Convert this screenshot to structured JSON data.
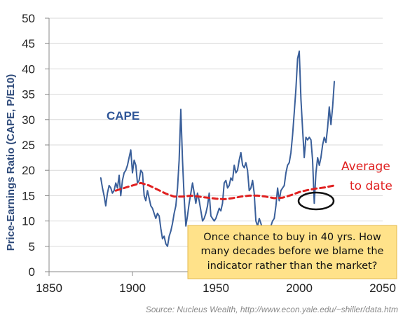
{
  "chart_data": {
    "type": "line",
    "ylabel": "Price-Earnings Ratio (CAPE, P/E10)",
    "xlabel": "",
    "xlim": [
      1850,
      2050
    ],
    "ylim": [
      0,
      50
    ],
    "x_ticks": [
      "1850",
      "1900",
      "1950",
      "2000",
      "2050"
    ],
    "y_ticks": [
      "0",
      "5",
      "10",
      "15",
      "20",
      "25",
      "30",
      "35",
      "40",
      "45",
      "50"
    ],
    "grid": "horizontal",
    "series": [
      {
        "name": "CAPE",
        "color": "#3A5F9A",
        "x": [
          1881,
          1882,
          1883,
          1884,
          1885,
          1886,
          1887,
          1888,
          1889,
          1890,
          1891,
          1892,
          1893,
          1894,
          1895,
          1896,
          1897,
          1898,
          1899,
          1900,
          1901,
          1902,
          1903,
          1904,
          1905,
          1906,
          1907,
          1908,
          1909,
          1910,
          1911,
          1912,
          1913,
          1914,
          1915,
          1916,
          1917,
          1918,
          1919,
          1920,
          1921,
          1922,
          1923,
          1924,
          1925,
          1926,
          1927,
          1928,
          1929,
          1930,
          1931,
          1932,
          1933,
          1934,
          1935,
          1936,
          1937,
          1938,
          1939,
          1940,
          1941,
          1942,
          1943,
          1944,
          1945,
          1946,
          1947,
          1948,
          1949,
          1950,
          1951,
          1952,
          1953,
          1954,
          1955,
          1956,
          1957,
          1958,
          1959,
          1960,
          1961,
          1962,
          1963,
          1964,
          1965,
          1966,
          1967,
          1968,
          1969,
          1970,
          1971,
          1972,
          1973,
          1974,
          1975,
          1976,
          1977,
          1978,
          1979,
          1980,
          1981,
          1982,
          1983,
          1984,
          1985,
          1986,
          1987,
          1988,
          1989,
          1990,
          1991,
          1992,
          1993,
          1994,
          1995,
          1996,
          1997,
          1998,
          1999,
          2000,
          2001,
          2002,
          2003,
          2004,
          2005,
          2006,
          2007,
          2008,
          2009,
          2010,
          2011,
          2012,
          2013,
          2014,
          2015,
          2016,
          2017,
          2018,
          2019,
          2020,
          2021
        ],
        "y": [
          18.5,
          16.5,
          15.0,
          13.0,
          15.5,
          17.0,
          16.5,
          15.5,
          16.0,
          17.5,
          16.5,
          19.0,
          15.0,
          18.0,
          19.5,
          20.0,
          21.0,
          22.5,
          24.0,
          19.5,
          22.0,
          21.0,
          17.5,
          18.0,
          20.0,
          19.5,
          15.0,
          14.0,
          16.0,
          14.5,
          13.0,
          12.5,
          11.5,
          10.5,
          11.5,
          11.0,
          8.5,
          6.5,
          7.0,
          5.5,
          5.0,
          7.0,
          8.0,
          9.5,
          11.5,
          13.0,
          16.5,
          22.0,
          32.0,
          22.0,
          14.5,
          9.0,
          11.0,
          13.5,
          15.5,
          17.5,
          15.5,
          13.5,
          15.5,
          14.0,
          12.0,
          10.0,
          10.5,
          11.5,
          13.0,
          15.5,
          11.0,
          10.5,
          10.0,
          10.5,
          11.5,
          12.5,
          12.0,
          13.5,
          17.5,
          18.0,
          16.5,
          17.0,
          18.5,
          18.0,
          21.0,
          19.5,
          20.0,
          22.0,
          23.5,
          21.0,
          20.5,
          21.5,
          20.0,
          16.0,
          16.5,
          18.0,
          15.5,
          10.0,
          9.0,
          10.5,
          9.5,
          8.5,
          8.5,
          8.5,
          9.0,
          7.5,
          9.0,
          10.0,
          10.5,
          13.0,
          16.5,
          14.0,
          16.0,
          16.5,
          17.0,
          19.5,
          21.0,
          21.5,
          23.5,
          27.0,
          31.5,
          36.0,
          42.0,
          43.5,
          34.0,
          28.0,
          22.5,
          26.5,
          26.0,
          26.5,
          26.0,
          22.0,
          13.5,
          19.5,
          22.5,
          21.0,
          22.5,
          25.0,
          26.5,
          25.5,
          28.5,
          32.5,
          29.0,
          32.5,
          37.5
        ]
      },
      {
        "name": "Average to date",
        "color": "#E02020",
        "dashed": true,
        "x": [
          1890,
          1895,
          1900,
          1905,
          1910,
          1915,
          1920,
          1925,
          1930,
          1935,
          1940,
          1945,
          1950,
          1955,
          1960,
          1965,
          1970,
          1975,
          1980,
          1985,
          1990,
          1995,
          2000,
          2005,
          2010,
          2015,
          2021
        ],
        "y": [
          16.0,
          16.5,
          17.0,
          17.5,
          17.0,
          16.2,
          15.4,
          14.8,
          14.8,
          15.0,
          14.8,
          14.6,
          14.4,
          14.3,
          14.5,
          14.8,
          15.0,
          15.0,
          14.8,
          14.5,
          14.6,
          15.1,
          15.7,
          16.1,
          16.4,
          16.6,
          17.0
        ]
      }
    ],
    "annotations": {
      "cape_label": "CAPE",
      "average_label_line1": "Average",
      "average_label_line2": "to date",
      "note_lines": [
        "Once chance to buy in 40 yrs. How",
        "many decades before we blame the",
        "indicator rather than the market?"
      ],
      "source": "Source:  Nucleus Wealth, http://www.econ.yale.edu/~shiller/data.htm"
    },
    "colors": {
      "grid": "#d9d9d9",
      "axis": "#888888",
      "note_background": "#FFE28A",
      "note_border": "#E3B84A"
    }
  }
}
